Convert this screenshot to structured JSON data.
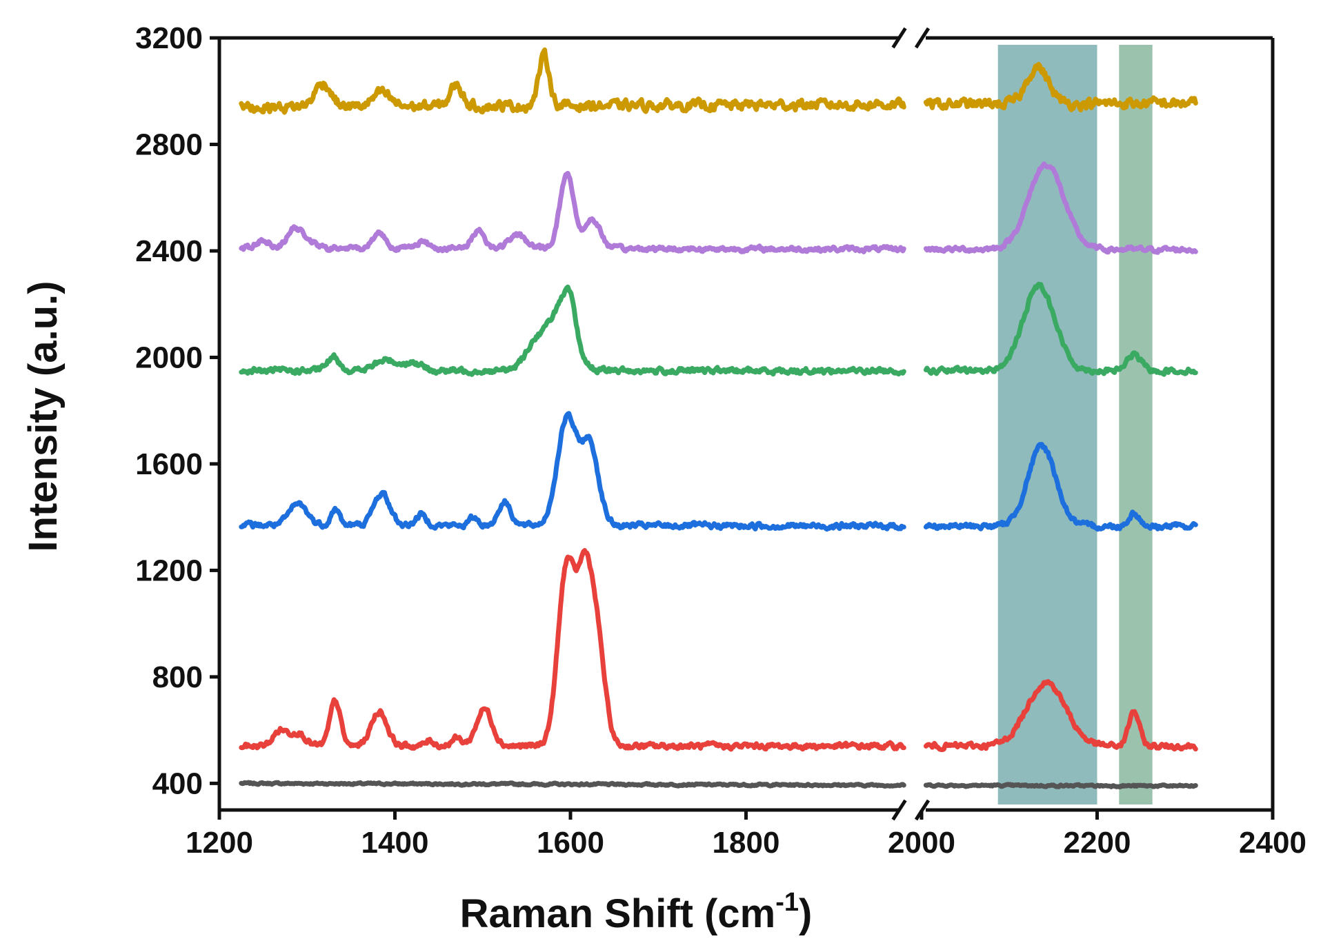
{
  "chart_data": {
    "type": "line",
    "title": "",
    "xlabel_main": "Raman Shift (cm",
    "xlabel_sup": "-1",
    "xlabel_close": ")",
    "ylabel": "Intensity (a.u.)",
    "xlim": [
      1200,
      2400
    ],
    "axis_break": [
      1980,
      2000
    ],
    "ylim": [
      300,
      3200
    ],
    "x_ticks": [
      "1200",
      "1400",
      "1600",
      "1800",
      "2000",
      "2200",
      "2400"
    ],
    "y_ticks": [
      "400",
      "800",
      "1200",
      "1600",
      "2000",
      "2400",
      "2800",
      "3200"
    ],
    "highlight_bands": [
      {
        "x_from": 2087,
        "x_to": 2200,
        "color": "#5f9ea0"
      },
      {
        "x_from": 2225,
        "x_to": 2263,
        "color": "#6fa88a"
      }
    ],
    "series": [
      {
        "name": "gray",
        "color": "#555555",
        "baseline": 400,
        "end_level": 390,
        "noise": 6,
        "peaks": []
      },
      {
        "name": "red",
        "color": "#e8413c",
        "baseline": 540,
        "end_level": 540,
        "noise": 18,
        "peaks": [
          [
            1270,
            60,
            8
          ],
          [
            1290,
            50,
            8
          ],
          [
            1332,
            170,
            6
          ],
          [
            1382,
            130,
            9
          ],
          [
            1440,
            20,
            5
          ],
          [
            1470,
            30,
            6
          ],
          [
            1502,
            140,
            9
          ],
          [
            1596,
            680,
            10
          ],
          [
            1616,
            520,
            8
          ],
          [
            1630,
            400,
            9
          ],
          [
            2142,
            240,
            22
          ],
          [
            2242,
            130,
            6
          ]
        ]
      },
      {
        "name": "blue",
        "color": "#1e6fde",
        "baseline": 1370,
        "end_level": 1365,
        "noise": 18,
        "peaks": [
          [
            1290,
            80,
            10
          ],
          [
            1332,
            60,
            5
          ],
          [
            1385,
            120,
            9
          ],
          [
            1430,
            40,
            6
          ],
          [
            1490,
            30,
            5
          ],
          [
            1525,
            90,
            7
          ],
          [
            1596,
            400,
            11
          ],
          [
            1622,
            300,
            10
          ],
          [
            2137,
            300,
            16
          ],
          [
            2242,
            50,
            6
          ]
        ]
      },
      {
        "name": "green",
        "color": "#3aaa62",
        "baseline": 1950,
        "end_level": 1950,
        "noise": 18,
        "peaks": [
          [
            1330,
            50,
            7
          ],
          [
            1390,
            40,
            12
          ],
          [
            1420,
            30,
            10
          ],
          [
            1560,
            100,
            12
          ],
          [
            1590,
            240,
            14
          ],
          [
            1600,
            100,
            6
          ],
          [
            2134,
            320,
            18
          ],
          [
            2242,
            60,
            8
          ]
        ]
      },
      {
        "name": "purple",
        "color": "#b07ad8",
        "baseline": 2410,
        "end_level": 2405,
        "noise": 16,
        "peaks": [
          [
            1250,
            30,
            8
          ],
          [
            1285,
            70,
            8
          ],
          [
            1300,
            30,
            8
          ],
          [
            1382,
            60,
            7
          ],
          [
            1430,
            25,
            8
          ],
          [
            1495,
            70,
            7
          ],
          [
            1540,
            50,
            10
          ],
          [
            1596,
            280,
            8
          ],
          [
            1625,
            110,
            9
          ],
          [
            2142,
            320,
            20
          ]
        ]
      },
      {
        "name": "gold",
        "color": "#cc9900",
        "baseline": 2940,
        "end_level": 2955,
        "noise": 32,
        "peaks": [
          [
            1318,
            90,
            9
          ],
          [
            1385,
            50,
            10
          ],
          [
            1470,
            80,
            7
          ],
          [
            1570,
            190,
            6
          ],
          [
            2132,
            140,
            12
          ]
        ]
      }
    ]
  }
}
